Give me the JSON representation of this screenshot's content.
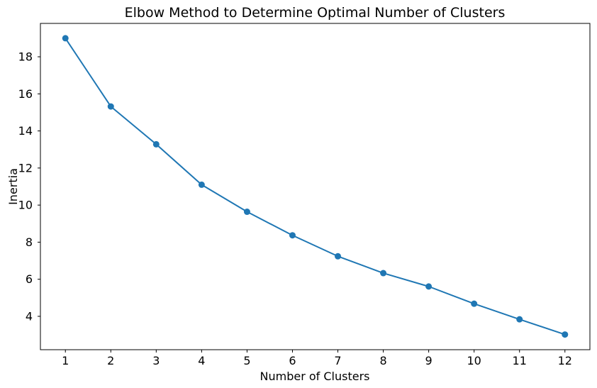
{
  "chart_data": {
    "type": "line",
    "title": "Elbow Method to Determine Optimal Number of Clusters",
    "xlabel": "Number of Clusters",
    "ylabel": "Inertia",
    "x": [
      1,
      2,
      3,
      4,
      5,
      6,
      7,
      8,
      9,
      10,
      11,
      12
    ],
    "values": [
      19.0,
      15.32,
      13.28,
      11.1,
      9.64,
      8.37,
      7.24,
      6.33,
      5.61,
      4.68,
      3.84,
      3.02
    ],
    "series_name": "Inertia",
    "xlim": [
      0.45,
      12.55
    ],
    "ylim": [
      2.2,
      19.8
    ],
    "x_ticks": [
      1,
      2,
      3,
      4,
      5,
      6,
      7,
      8,
      9,
      10,
      11,
      12
    ],
    "y_ticks": [
      4,
      6,
      8,
      10,
      12,
      14,
      16,
      18
    ],
    "grid": false,
    "legend": "none",
    "marker": "circle",
    "line_color": "#1f77b4",
    "marker_color": "#1f77b4",
    "text_color": "#000000",
    "spine_color": "#000000",
    "background_color": "#ffffff"
  }
}
